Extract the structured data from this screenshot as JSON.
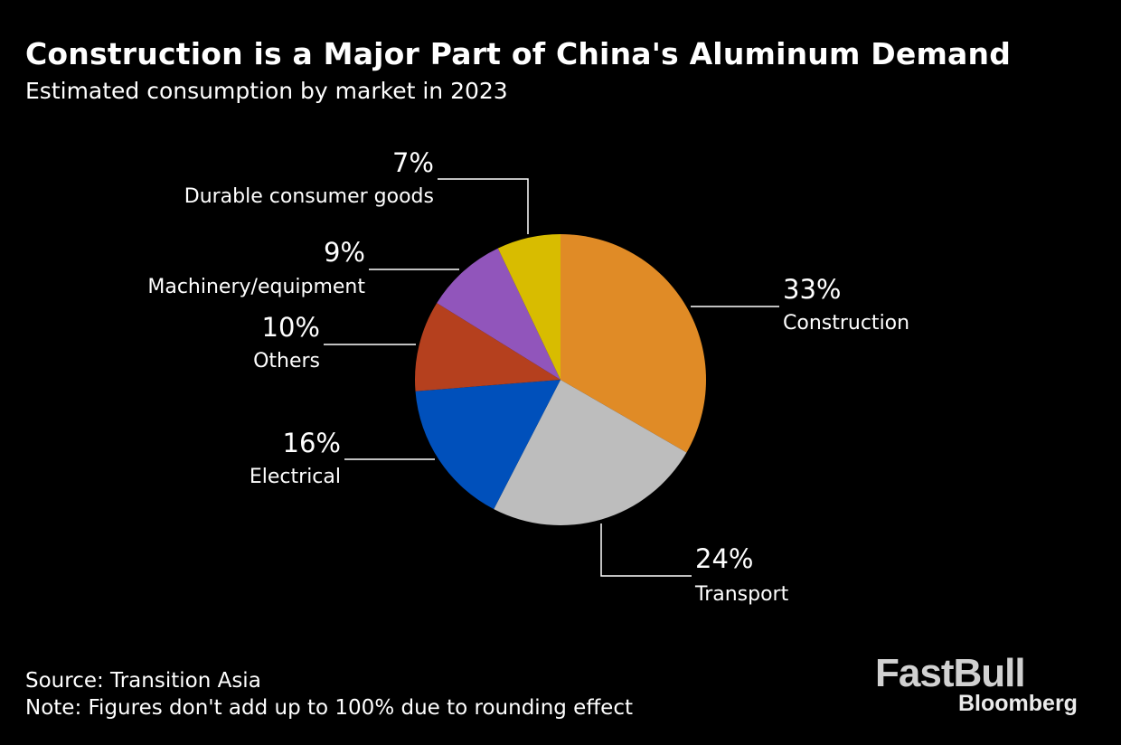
{
  "header": {
    "title": "Construction is a Major Part of China's Aluminum Demand",
    "subtitle": "Estimated consumption by market in 2023"
  },
  "chart_data": {
    "type": "pie",
    "title": "Construction is a Major Part of China's Aluminum Demand",
    "subtitle": "Estimated consumption by market in 2023",
    "unit": "%",
    "slices": [
      {
        "label": "Construction",
        "value": 33,
        "value_label": "33%",
        "color": "#e08b26"
      },
      {
        "label": "Transport",
        "value": 24,
        "value_label": "24%",
        "color": "#bdbdbd"
      },
      {
        "label": "Electrical",
        "value": 16,
        "value_label": "16%",
        "color": "#0050bb"
      },
      {
        "label": "Others",
        "value": 10,
        "value_label": "10%",
        "color": "#b5401e"
      },
      {
        "label": "Machinery/equipment",
        "value": 9,
        "value_label": "9%",
        "color": "#9155bb"
      },
      {
        "label": "Durable consumer goods",
        "value": 7,
        "value_label": "7%",
        "color": "#d8bc00"
      }
    ],
    "start_angle": "12 o'clock",
    "direction": "clockwise",
    "legend": "none (direct labels with leader lines)"
  },
  "footer": {
    "source": "Source: Transition Asia",
    "note": "Note: Figures don't add up to 100% due to rounding effect"
  },
  "branding": {
    "logo_main": "FastBull",
    "logo_sub": "Bloomberg"
  }
}
